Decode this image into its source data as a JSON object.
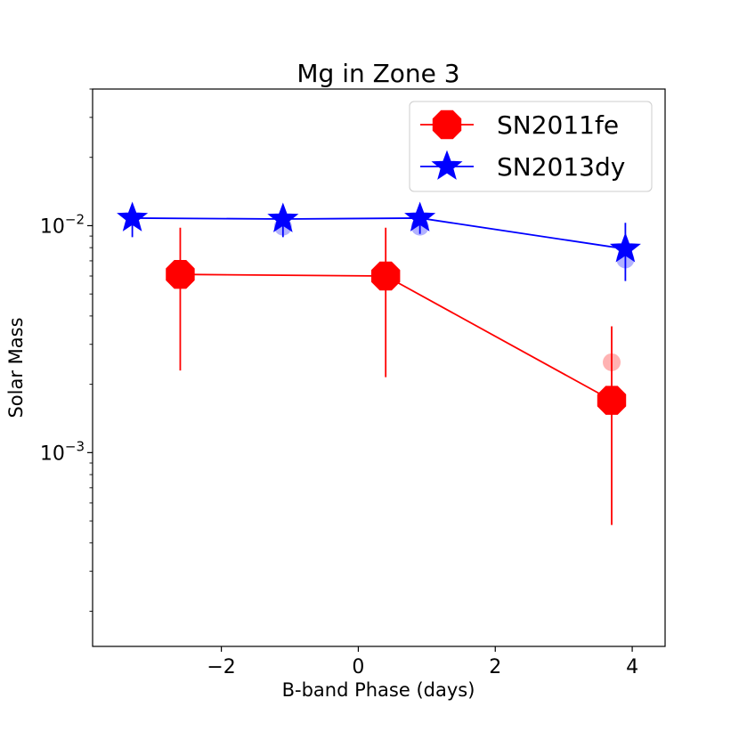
{
  "chart_data": {
    "type": "line",
    "title": "Mg in Zone 3",
    "xlabel": "B-band Phase (days)",
    "ylabel": "Solar Mass",
    "xlim": [
      -3.88,
      4.48
    ],
    "ylim": [
      0.00014,
      0.04
    ],
    "yscale": "log",
    "x_ticks": [
      -2,
      0,
      2,
      4
    ],
    "x_tick_labels": [
      "−2",
      "0",
      "2",
      "4"
    ],
    "y_major_ticks": [
      0.001,
      0.01
    ],
    "y_tick_base": "10",
    "y_tick_exponents": [
      "−3",
      "−2"
    ],
    "legend_position": "top-right",
    "series": [
      {
        "name": "SN2011fe",
        "color": "#ff0000",
        "marker": "octagon",
        "x": [
          -2.6,
          0.4,
          3.7
        ],
        "values": [
          0.0061,
          0.006,
          0.0017
        ],
        "err_low": [
          0.0023,
          0.00215,
          0.00048
        ],
        "err_high": [
          0.0098,
          0.0098,
          0.0036
        ],
        "ghost_x": [
          3.7
        ],
        "ghost_values": [
          0.0025
        ]
      },
      {
        "name": "SN2013dy",
        "color": "#0000ff",
        "marker": "star",
        "x": [
          -3.3,
          -1.1,
          0.9,
          3.9
        ],
        "values": [
          0.0108,
          0.0107,
          0.0108,
          0.0079
        ],
        "err_low": [
          0.0089,
          0.0089,
          0.0092,
          0.0057
        ],
        "err_high": [
          0.0123,
          0.0123,
          0.0124,
          0.0103
        ],
        "ghost_x": [
          -1.1,
          0.9,
          3.9
        ],
        "ghost_values": [
          0.0099,
          0.0099,
          0.0071
        ]
      }
    ]
  }
}
